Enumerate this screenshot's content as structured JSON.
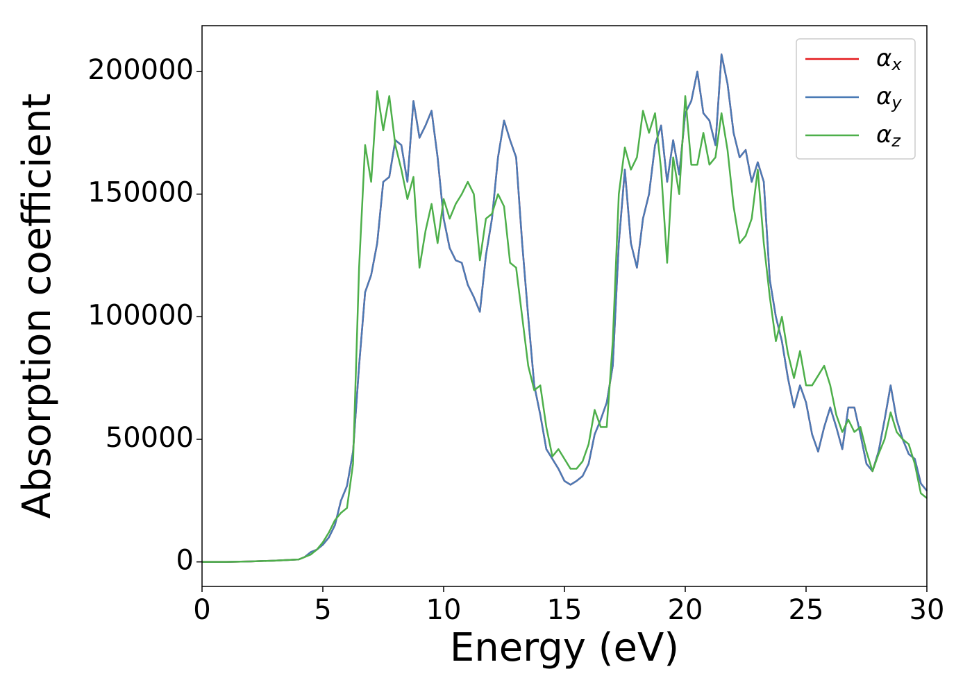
{
  "chart_data": {
    "type": "line",
    "xlabel": "Energy (eV)",
    "ylabel": "Absorption coefficient",
    "x": [
      0,
      1,
      2,
      3,
      4,
      4.25,
      4.5,
      4.75,
      5,
      5.25,
      5.5,
      5.75,
      6,
      6.25,
      6.5,
      6.75,
      7,
      7.25,
      7.5,
      7.75,
      8,
      8.25,
      8.5,
      8.75,
      9,
      9.25,
      9.5,
      9.75,
      10,
      10.25,
      10.5,
      10.75,
      11,
      11.25,
      11.5,
      11.75,
      12,
      12.25,
      12.5,
      12.75,
      13,
      13.25,
      13.5,
      13.75,
      14,
      14.25,
      14.5,
      14.75,
      15,
      15.25,
      15.5,
      15.75,
      16,
      16.25,
      16.5,
      16.75,
      17,
      17.25,
      17.5,
      17.75,
      18,
      18.25,
      18.5,
      18.75,
      19,
      19.25,
      19.5,
      19.75,
      20,
      20.25,
      20.5,
      20.75,
      21,
      21.25,
      21.5,
      21.75,
      22,
      22.25,
      22.5,
      22.75,
      23,
      23.25,
      23.5,
      23.75,
      24,
      24.25,
      24.5,
      24.75,
      25,
      25.25,
      25.5,
      25.75,
      26,
      26.25,
      26.5,
      26.75,
      27,
      27.25,
      27.5,
      27.75,
      28,
      28.25,
      28.5,
      28.75,
      29,
      29.25,
      29.5,
      29.75,
      30
    ],
    "series": [
      {
        "name": "αx",
        "color": "#e41a1c",
        "values": [
          0,
          0,
          200,
          500,
          1000,
          2000,
          4000,
          5000,
          7000,
          10000,
          15000,
          25000,
          31000,
          45000,
          80000,
          110000,
          117000,
          130000,
          155000,
          157000,
          172000,
          170000,
          155000,
          188000,
          173000,
          178000,
          184000,
          165000,
          140000,
          128000,
          123000,
          122000,
          113000,
          108000,
          102000,
          125000,
          140000,
          165000,
          180000,
          172000,
          165000,
          130000,
          100000,
          72000,
          60000,
          46000,
          42000,
          38000,
          33000,
          31500,
          33000,
          35000,
          40000,
          52000,
          58000,
          65000,
          80000,
          130000,
          160000,
          130000,
          120000,
          140000,
          150000,
          170000,
          178000,
          155000,
          172000,
          158000,
          183000,
          188000,
          200000,
          183000,
          180000,
          170000,
          207000,
          195000,
          175000,
          165000,
          168000,
          155000,
          163000,
          155000,
          115000,
          100000,
          90000,
          75000,
          63000,
          72000,
          65000,
          52000,
          45000,
          55000,
          63000,
          55000,
          46000,
          63000,
          63000,
          52000,
          40000,
          37000,
          45000,
          58000,
          72000,
          58000,
          50000,
          44000,
          42000,
          32000,
          29000
        ]
      },
      {
        "name": "αy",
        "color": "#4a7ab5",
        "values": [
          0,
          0,
          200,
          500,
          1000,
          2000,
          4000,
          5000,
          7000,
          10000,
          15000,
          25000,
          31000,
          45000,
          80000,
          110000,
          117000,
          130000,
          155000,
          157000,
          172000,
          170000,
          155000,
          188000,
          173000,
          178000,
          184000,
          165000,
          140000,
          128000,
          123000,
          122000,
          113000,
          108000,
          102000,
          125000,
          140000,
          165000,
          180000,
          172000,
          165000,
          130000,
          100000,
          72000,
          60000,
          46000,
          42000,
          38000,
          33000,
          31500,
          33000,
          35000,
          40000,
          52000,
          58000,
          65000,
          80000,
          130000,
          160000,
          130000,
          120000,
          140000,
          150000,
          170000,
          178000,
          155000,
          172000,
          158000,
          183000,
          188000,
          200000,
          183000,
          180000,
          170000,
          207000,
          195000,
          175000,
          165000,
          168000,
          155000,
          163000,
          155000,
          115000,
          100000,
          90000,
          75000,
          63000,
          72000,
          65000,
          52000,
          45000,
          55000,
          63000,
          55000,
          46000,
          63000,
          63000,
          52000,
          40000,
          37000,
          45000,
          58000,
          72000,
          58000,
          50000,
          44000,
          42000,
          32000,
          29000
        ]
      },
      {
        "name": "αz",
        "color": "#4daf4a",
        "values": [
          0,
          0,
          200,
          500,
          1000,
          2000,
          3000,
          5000,
          8000,
          12000,
          17000,
          20000,
          22000,
          40000,
          120000,
          170000,
          155000,
          192000,
          176000,
          190000,
          170000,
          160000,
          148000,
          157000,
          120000,
          135000,
          146000,
          130000,
          148000,
          140000,
          146000,
          150000,
          155000,
          150000,
          123000,
          140000,
          142000,
          150000,
          145000,
          122000,
          120000,
          100000,
          80000,
          70000,
          72000,
          55000,
          43000,
          46000,
          42000,
          38000,
          38000,
          41000,
          48000,
          62000,
          55000,
          55000,
          90000,
          150000,
          169000,
          160000,
          165000,
          184000,
          175000,
          183000,
          160000,
          122000,
          165000,
          150000,
          190000,
          162000,
          162000,
          175000,
          162000,
          165000,
          183000,
          168000,
          145000,
          130000,
          133000,
          140000,
          160000,
          130000,
          108000,
          90000,
          100000,
          85000,
          75000,
          86000,
          72000,
          72000,
          76000,
          80000,
          72000,
          60000,
          53000,
          58000,
          53000,
          55000,
          45000,
          37000,
          44000,
          50000,
          61000,
          53000,
          50000,
          48000,
          40000,
          28000,
          26000
        ]
      }
    ],
    "xlim": [
      0,
      30
    ],
    "xticks": [
      0,
      5,
      10,
      15,
      20,
      25,
      30
    ],
    "ylim": [
      -10000,
      218700
    ],
    "yticks": [
      0,
      50000,
      100000,
      150000,
      200000
    ],
    "legend": "upper right"
  }
}
